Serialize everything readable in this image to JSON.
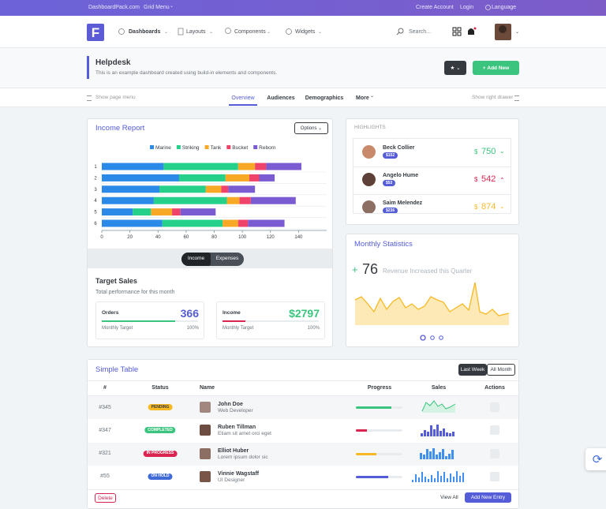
{
  "topbar": {
    "brand": "DashboardPack.com",
    "grid_menu": "Grid Menu",
    "links": [
      "Create Account",
      "Login",
      "Language"
    ]
  },
  "header": {
    "nav": [
      "Dashboards",
      "Layouts",
      "Components",
      "Widgets"
    ],
    "search": "Search..."
  },
  "page_title": {
    "title": "Helpdesk",
    "subtitle": "This is an example dashboard created using build-in elements and components.",
    "add_button": "Add New"
  },
  "tabs": {
    "left": "Show page menu",
    "items": [
      "Overview",
      "Audiences",
      "Demographics",
      "More"
    ],
    "right": "Show right drawer"
  },
  "income_report": {
    "title": "Income Report",
    "options": "Options",
    "chart": {
      "type": "bar",
      "orientation": "horizontal",
      "stacked": true,
      "categories": [
        "1",
        "2",
        "3",
        "4",
        "5",
        "6"
      ],
      "series": [
        {
          "name": "Marine",
          "color": "#2b8ae8",
          "values": [
            44,
            55,
            41,
            37,
            22,
            43
          ]
        },
        {
          "name": "Striking",
          "color": "#25d08a",
          "values": [
            53,
            33,
            33,
            52,
            13,
            43
          ]
        },
        {
          "name": "Tank",
          "color": "#f7a825",
          "values": [
            12,
            17,
            11,
            9,
            15,
            11
          ]
        },
        {
          "name": "Bucket",
          "color": "#f0436a",
          "values": [
            8,
            7,
            5,
            8,
            6,
            7
          ]
        },
        {
          "name": "Reborn",
          "color": "#7b5bd1",
          "values": [
            25,
            11,
            19,
            32,
            25,
            26
          ]
        }
      ],
      "xlim": [
        0,
        160
      ],
      "xticks": [
        0,
        20,
        40,
        60,
        80,
        100,
        120,
        140
      ]
    },
    "toggle": [
      "Income",
      "Expenses"
    ],
    "target_sales": {
      "title": "Target Sales",
      "subtitle": "Total performance for this month",
      "cards": [
        {
          "label": "Orders",
          "value": "366",
          "color": "#545cd8",
          "bar_color": "#3ac47d",
          "progress": 76,
          "target_label": "Monthly Target",
          "target": "100%"
        },
        {
          "label": "Income",
          "value": "$2797",
          "color": "#3ac47d",
          "bar_color": "#d92550",
          "progress": 24,
          "target_label": "Monthly Target",
          "target": "100%"
        }
      ]
    }
  },
  "highlights": {
    "title": "HIGHLIGHTS",
    "items": [
      {
        "name": "Beck Collier",
        "badge": "$152",
        "currency": "$",
        "amount": "750",
        "color": "#3ac47d",
        "trend": "down"
      },
      {
        "name": "Angelo Hume",
        "badge": "$53",
        "currency": "$",
        "amount": "542",
        "color": "#d92550",
        "trend": "up"
      },
      {
        "name": "Saim Melendez",
        "badge": "$236",
        "currency": "$",
        "amount": "874",
        "color": "#f7b924",
        "trend": "down"
      }
    ]
  },
  "monthly_statistics": {
    "title": "Monthly Statistics",
    "prefix": "+",
    "value": 76,
    "caption": "Revenue Increased this Quarter"
  },
  "simple_table": {
    "title": "Simple Table",
    "filters": [
      "Last Week",
      "All Month"
    ],
    "columns": [
      "#",
      "Status",
      "Name",
      "Progress",
      "Sales",
      "Actions"
    ],
    "rows": [
      {
        "id": "#345",
        "status": "PENDING",
        "status_color": "#f7b924",
        "name": "John Doe",
        "role": "Web Developer",
        "progress": 76,
        "progress_color": "#3ac47d"
      },
      {
        "id": "#347",
        "status": "COMPLETED",
        "status_color": "#3ac47d",
        "name": "Ruben Tillman",
        "role": "Etiam sit amet orci eget",
        "progress": 24,
        "progress_color": "#d92550"
      },
      {
        "id": "#321",
        "status": "IN PROGRESS",
        "status_color": "#d92550",
        "name": "Elliot Huber",
        "role": "Lorem ipsum dolor sic",
        "progress": 44,
        "progress_color": "#f7b924"
      },
      {
        "id": "#55",
        "status": "ON HOLD",
        "status_color": "#3f6ad8",
        "name": "Vinnie Wagstaff",
        "role": "UI Designer",
        "progress": 70,
        "progress_color": "#545cd8"
      }
    ],
    "footer": {
      "delete": "Delete",
      "view_all": "View All",
      "add": "Add New Entry"
    }
  }
}
